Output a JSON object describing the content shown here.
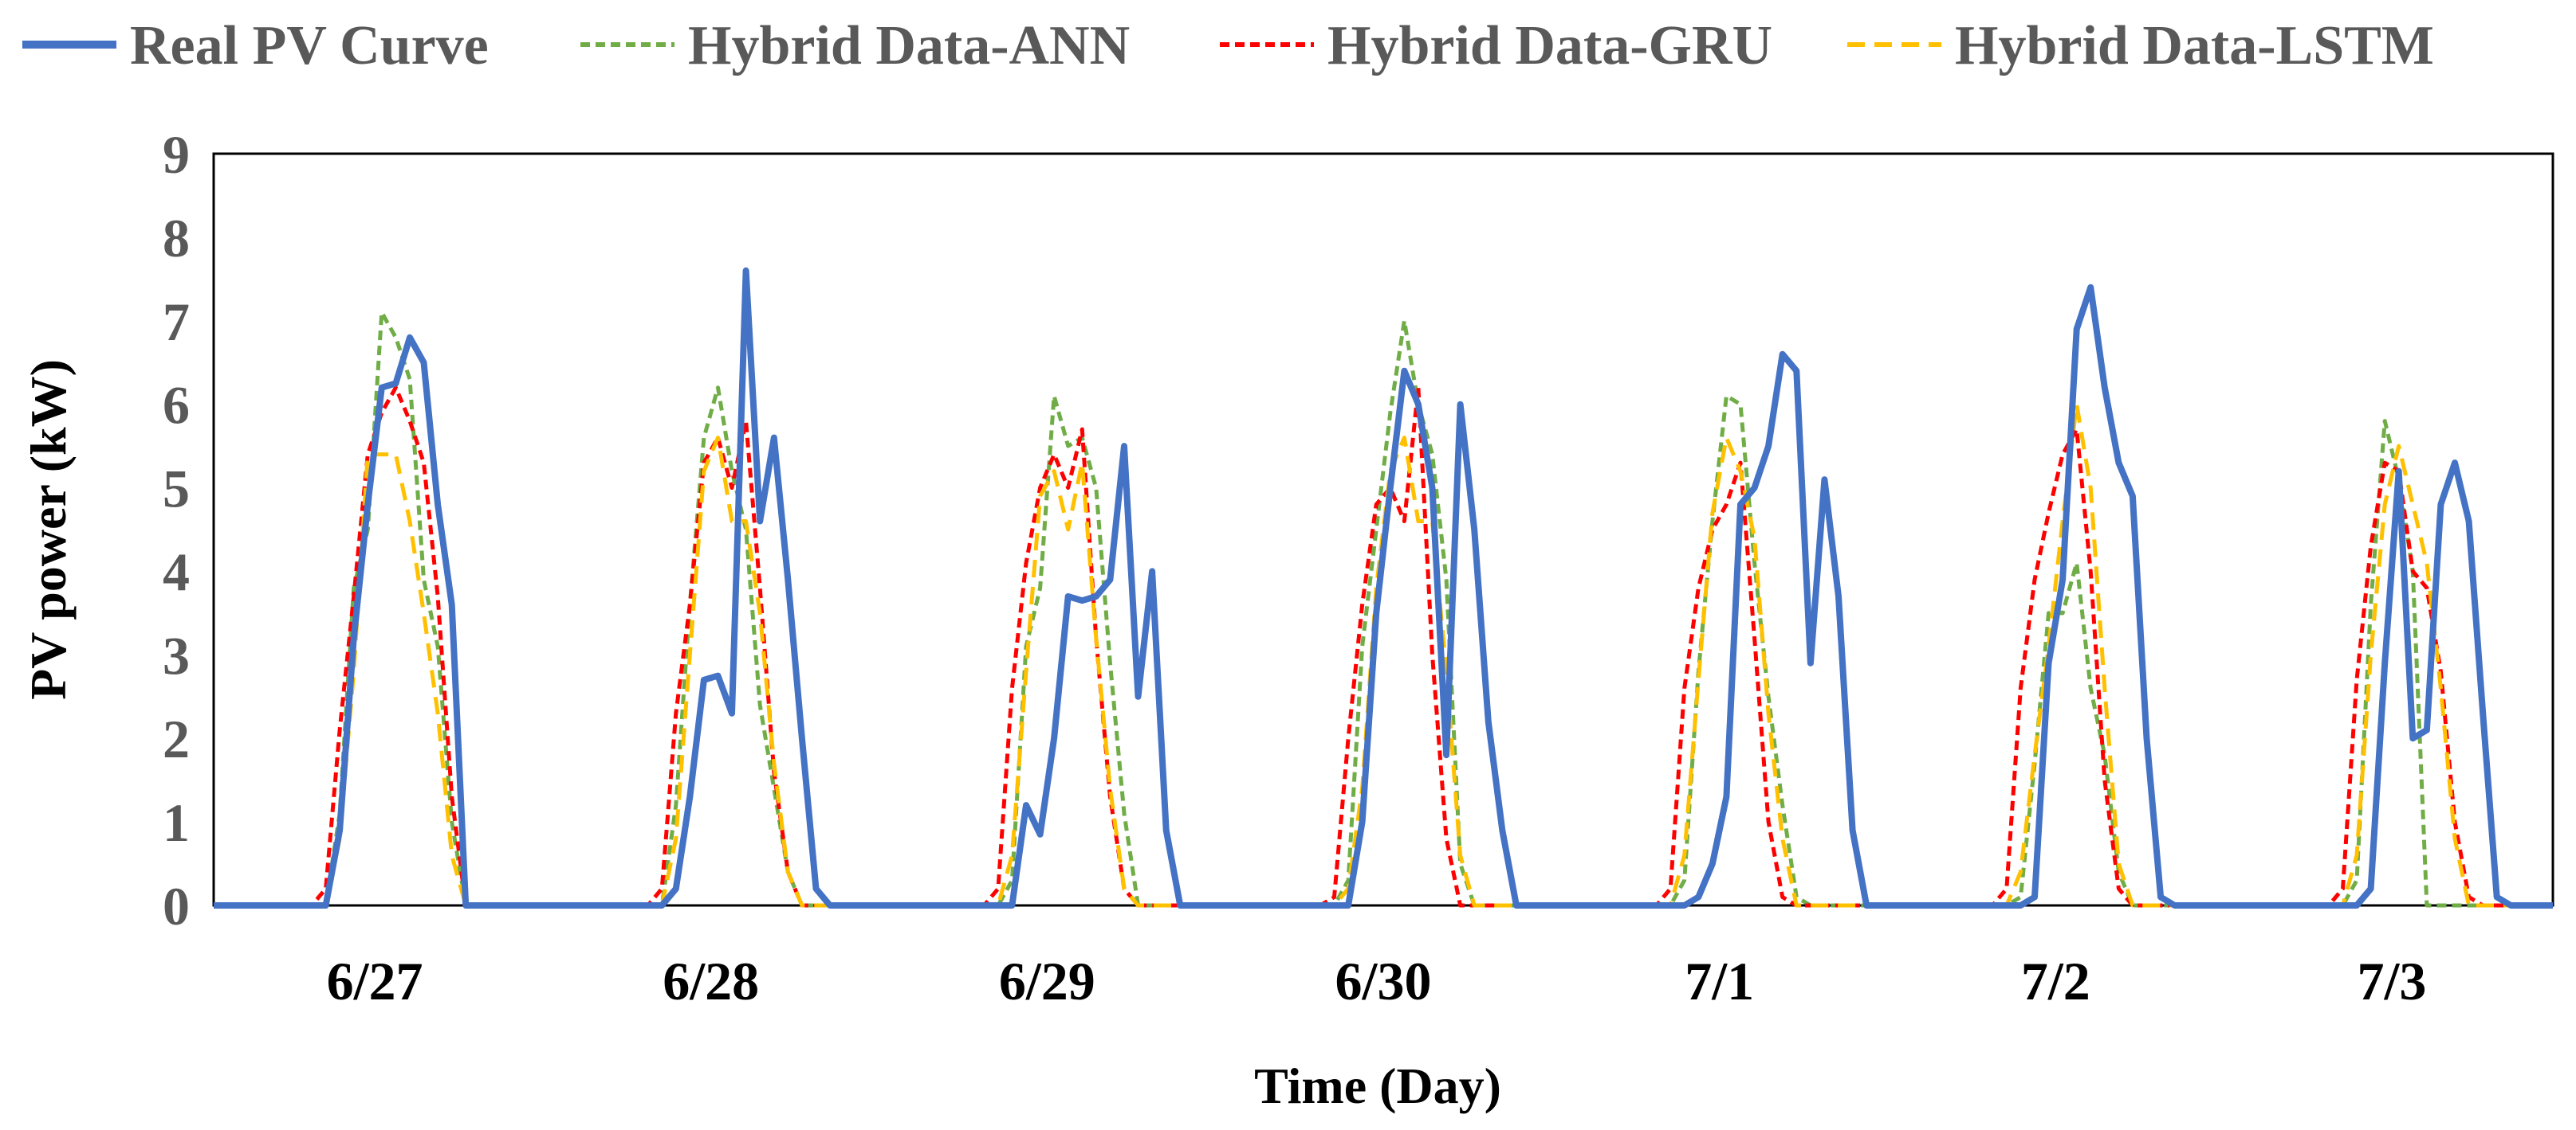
{
  "chart_data": {
    "type": "line",
    "title": "",
    "xlabel": "Time (Day)",
    "ylabel": "PV power (kW)",
    "ylim": [
      0,
      9
    ],
    "yticks": [
      "0",
      "1",
      "2",
      "3",
      "4",
      "5",
      "6",
      "7",
      "8",
      "9"
    ],
    "days": [
      "6/27",
      "6/28",
      "6/29",
      "6/30",
      "7/1",
      "7/2",
      "7/3"
    ],
    "hours_per_day": 24,
    "legend_position": "top",
    "series": [
      {
        "name": "Real PV Curve",
        "color": "#4472C4",
        "style": "solid",
        "values": [
          0,
          0,
          0,
          0,
          0,
          0,
          0,
          0,
          0,
          0.9,
          3.2,
          4.8,
          6.2,
          6.25,
          6.8,
          6.5,
          4.8,
          3.6,
          0,
          0,
          0,
          0,
          0,
          0,
          0,
          0,
          0,
          0,
          0,
          0,
          0,
          0,
          0,
          0.2,
          1.3,
          2.7,
          2.75,
          2.3,
          7.6,
          4.6,
          5.6,
          3.9,
          2.0,
          0.2,
          0,
          0,
          0,
          0,
          0,
          0,
          0,
          0,
          0,
          0,
          0,
          0,
          0,
          0,
          1.2,
          0.85,
          2.0,
          3.7,
          3.65,
          3.7,
          3.9,
          5.5,
          2.5,
          4.0,
          0.9,
          0,
          0,
          0,
          0,
          0,
          0,
          0,
          0,
          0,
          0,
          0,
          0,
          0,
          1.0,
          3.5,
          5.0,
          6.4,
          6.0,
          5.0,
          1.8,
          6.0,
          4.5,
          2.2,
          0.9,
          0,
          0,
          0,
          0,
          0,
          0,
          0,
          0,
          0,
          0,
          0,
          0,
          0,
          0.1,
          0.5,
          1.3,
          4.8,
          5.0,
          5.5,
          6.6,
          6.4,
          2.9,
          5.1,
          3.7,
          0.9,
          0,
          0,
          0,
          0,
          0,
          0,
          0,
          0,
          0,
          0,
          0,
          0,
          0.1,
          2.9,
          3.9,
          6.9,
          7.4,
          6.2,
          5.3,
          4.9,
          2.0,
          0.1,
          0,
          0,
          0,
          0,
          0,
          0,
          0,
          0,
          0,
          0,
          0,
          0,
          0,
          0,
          0.2,
          2.9,
          5.2,
          2.0,
          2.1,
          4.8,
          5.3,
          4.6,
          2.3,
          0.1,
          0,
          0,
          0,
          0
        ]
      },
      {
        "name": "Hybrid Data-ANN",
        "color": "#70AD47",
        "style": "dash-small",
        "values": [
          0,
          0,
          0,
          0,
          0,
          0,
          0,
          0,
          0,
          1.1,
          3.8,
          4.5,
          7.1,
          6.8,
          6.3,
          3.9,
          3.1,
          1.0,
          0,
          0,
          0,
          0,
          0,
          0,
          0,
          0,
          0,
          0,
          0,
          0,
          0,
          0,
          0,
          1.2,
          3.6,
          5.6,
          6.2,
          5.2,
          4.5,
          2.4,
          1.4,
          0.4,
          0,
          0,
          0,
          0,
          0,
          0,
          0,
          0,
          0,
          0,
          0,
          0,
          0,
          0,
          0,
          0.3,
          3.1,
          3.8,
          6.1,
          5.5,
          5.6,
          5.0,
          2.9,
          1.1,
          0,
          0,
          0,
          0,
          0,
          0,
          0,
          0,
          0,
          0,
          0,
          0,
          0,
          0,
          0,
          0.3,
          3.1,
          4.5,
          5.9,
          7.0,
          6.0,
          5.4,
          3.9,
          0.5,
          0,
          0,
          0,
          0,
          0,
          0,
          0,
          0,
          0,
          0,
          0,
          0,
          0,
          0,
          0,
          0.3,
          2.8,
          4.6,
          6.1,
          6.0,
          4.1,
          2.5,
          1.2,
          0.1,
          0,
          0,
          0,
          0,
          0,
          0,
          0,
          0,
          0,
          0,
          0,
          0,
          0,
          0,
          0,
          0.1,
          1.7,
          3.5,
          3.5,
          4.1,
          2.6,
          1.8,
          0.4,
          0,
          0,
          0,
          0,
          0,
          0,
          0,
          0,
          0,
          0,
          0,
          0,
          0,
          0,
          0,
          0,
          0.3,
          3.6,
          5.8,
          5.1,
          4.0,
          0,
          0,
          0,
          0,
          0,
          0,
          0,
          0,
          0,
          0
        ]
      },
      {
        "name": "Hybrid Data-GRU",
        "color": "#FF0000",
        "style": "dash-small",
        "values": [
          0,
          0,
          0,
          0,
          0,
          0,
          0,
          0,
          0.2,
          2.1,
          3.7,
          5.4,
          5.9,
          6.2,
          5.8,
          5.3,
          3.7,
          1.3,
          0,
          0,
          0,
          0,
          0,
          0,
          0,
          0,
          0,
          0,
          0,
          0,
          0,
          0,
          0.2,
          2.3,
          3.6,
          5.3,
          5.6,
          5.0,
          5.8,
          3.8,
          1.6,
          0.4,
          0,
          0,
          0,
          0,
          0,
          0,
          0,
          0,
          0,
          0,
          0,
          0,
          0,
          0,
          0.2,
          2.6,
          4.1,
          5.0,
          5.4,
          5.0,
          5.7,
          3.2,
          1.3,
          0.2,
          0,
          0,
          0,
          0,
          0,
          0,
          0,
          0,
          0,
          0,
          0,
          0,
          0,
          0,
          0.1,
          2.0,
          3.6,
          4.8,
          5.0,
          4.6,
          6.2,
          3.0,
          0.8,
          0,
          0,
          0,
          0,
          0,
          0,
          0,
          0,
          0,
          0,
          0,
          0,
          0,
          0,
          0,
          0.2,
          2.6,
          3.8,
          4.5,
          4.8,
          5.3,
          3.2,
          1.0,
          0.1,
          0,
          0,
          0,
          0,
          0,
          0,
          0,
          0,
          0,
          0,
          0,
          0,
          0,
          0,
          0,
          0.2,
          2.6,
          3.9,
          4.7,
          5.4,
          5.7,
          4.0,
          1.5,
          0.2,
          0,
          0,
          0,
          0,
          0,
          0,
          0,
          0,
          0,
          0,
          0,
          0,
          0,
          0,
          0,
          0.2,
          2.7,
          4.3,
          5.3,
          5.2,
          4.0,
          3.8,
          2.8,
          1.0,
          0.1,
          0,
          0,
          0,
          0,
          0,
          0
        ]
      },
      {
        "name": "Hybrid Data-LSTM",
        "color": "#FFC000",
        "style": "dash-long",
        "values": [
          0,
          0,
          0,
          0,
          0,
          0,
          0,
          0,
          0,
          0.8,
          2.8,
          5.4,
          5.4,
          5.4,
          4.6,
          3.5,
          2.3,
          0.6,
          0,
          0,
          0,
          0,
          0,
          0,
          0,
          0,
          0,
          0,
          0,
          0,
          0,
          0,
          0,
          0.8,
          3.0,
          5.2,
          5.6,
          4.6,
          4.6,
          3.5,
          1.7,
          0.4,
          0,
          0,
          0,
          0,
          0,
          0,
          0,
          0,
          0,
          0,
          0,
          0,
          0,
          0,
          0,
          0.6,
          2.8,
          4.9,
          5.2,
          4.5,
          5.3,
          3.2,
          1.4,
          0.2,
          0,
          0,
          0,
          0,
          0,
          0,
          0,
          0,
          0,
          0,
          0,
          0,
          0,
          0,
          0,
          0.2,
          1.4,
          3.8,
          5.2,
          5.6,
          4.6,
          4.6,
          2.8,
          0.6,
          0,
          0,
          0,
          0,
          0,
          0,
          0,
          0,
          0,
          0,
          0,
          0,
          0,
          0,
          0,
          0.6,
          2.7,
          4.7,
          5.6,
          5.2,
          4.4,
          2.3,
          0.8,
          0,
          0,
          0,
          0,
          0,
          0,
          0,
          0,
          0,
          0,
          0,
          0,
          0,
          0,
          0,
          0,
          0.4,
          1.8,
          3.1,
          4.6,
          6.0,
          5.0,
          2.6,
          0.5,
          0,
          0,
          0,
          0,
          0,
          0,
          0,
          0,
          0,
          0,
          0,
          0,
          0,
          0,
          0,
          0,
          0.6,
          3.0,
          4.8,
          5.5,
          4.8,
          4.1,
          2.6,
          0.8,
          0,
          0,
          0,
          0,
          0,
          0,
          0
        ]
      }
    ]
  }
}
